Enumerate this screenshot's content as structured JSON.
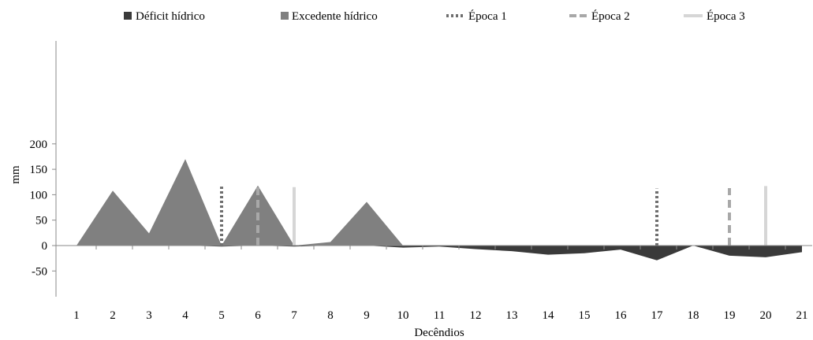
{
  "chart_data": {
    "type": "area",
    "ylabel": "mm",
    "xlabel": "Decêndios",
    "ylim": [
      -50,
      200
    ],
    "yticks": [
      -50,
      0,
      50,
      100,
      150,
      200
    ],
    "x": [
      1,
      2,
      3,
      4,
      5,
      6,
      7,
      8,
      9,
      10,
      11,
      12,
      13,
      14,
      15,
      16,
      17,
      18,
      19,
      20,
      21
    ],
    "series": [
      {
        "name": "Déficit hídrico",
        "kind": "area",
        "color": "#3a3a3a",
        "values": [
          0,
          0,
          0,
          0,
          -2,
          0,
          -2,
          0,
          0,
          -4,
          -2,
          -7,
          -11,
          -18,
          -15,
          -8,
          -29,
          0,
          -20,
          -23,
          -13
        ]
      },
      {
        "name": "Excedente hídrico",
        "kind": "area",
        "color": "#808080",
        "values": [
          0,
          108,
          24,
          170,
          0,
          118,
          0,
          7,
          86,
          0,
          0,
          0,
          0,
          0,
          0,
          0,
          0,
          0,
          0,
          0,
          0
        ]
      },
      {
        "name": "Época 1",
        "kind": "vline",
        "style": "dotted",
        "color": "#6e6e6e",
        "x": [
          5,
          17
        ],
        "height": [
          116,
          112
        ]
      },
      {
        "name": "Época 2",
        "kind": "vline",
        "style": "dashed",
        "color": "#a8a8a8",
        "x": [
          6,
          19
        ],
        "height": [
          119,
          113
        ]
      },
      {
        "name": "Época 3",
        "kind": "vline",
        "style": "solid",
        "color": "#d6d6d6",
        "x": [
          7,
          20
        ],
        "height": [
          115,
          117
        ]
      }
    ],
    "legend_position": "top",
    "grid": false
  }
}
